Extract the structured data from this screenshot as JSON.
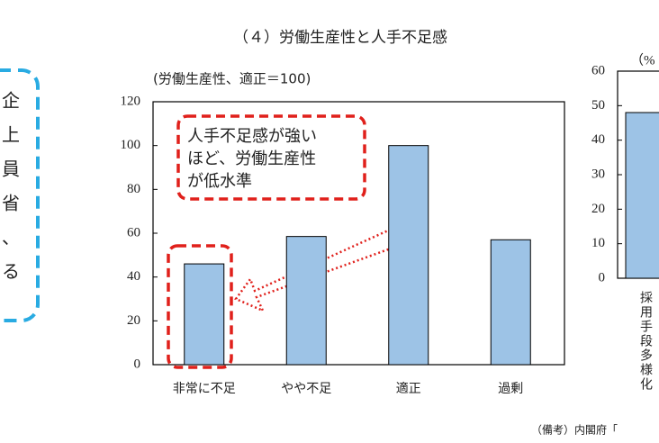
{
  "title": "（４）労働生産性と人手不足感",
  "left_panel": {
    "chars": [
      "企",
      "上",
      "員",
      "省",
      "、",
      "る"
    ]
  },
  "annotation": {
    "lines": [
      "人手不足感が強い",
      "ほど、労働生産性",
      "が低水準"
    ]
  },
  "note": "（備考）内閣府「",
  "chart_data": [
    {
      "type": "bar",
      "y_label": "(労働生産性、適正＝100)",
      "categories": [
        "非常に不足",
        "やや不足",
        "適正",
        "過剰"
      ],
      "values": [
        46,
        58.5,
        100,
        57
      ],
      "color": "#9dc3e6",
      "ylim": [
        0,
        120
      ],
      "yticks": [
        0,
        20,
        40,
        60,
        80,
        100,
        120
      ]
    },
    {
      "type": "bar",
      "y_label": "（%",
      "categories": [
        "採用手段多様化"
      ],
      "values": [
        48
      ],
      "color": "#9dc3e6",
      "ylim": [
        0,
        60
      ],
      "yticks": [
        0,
        10,
        20,
        30,
        40,
        50,
        60
      ]
    }
  ]
}
